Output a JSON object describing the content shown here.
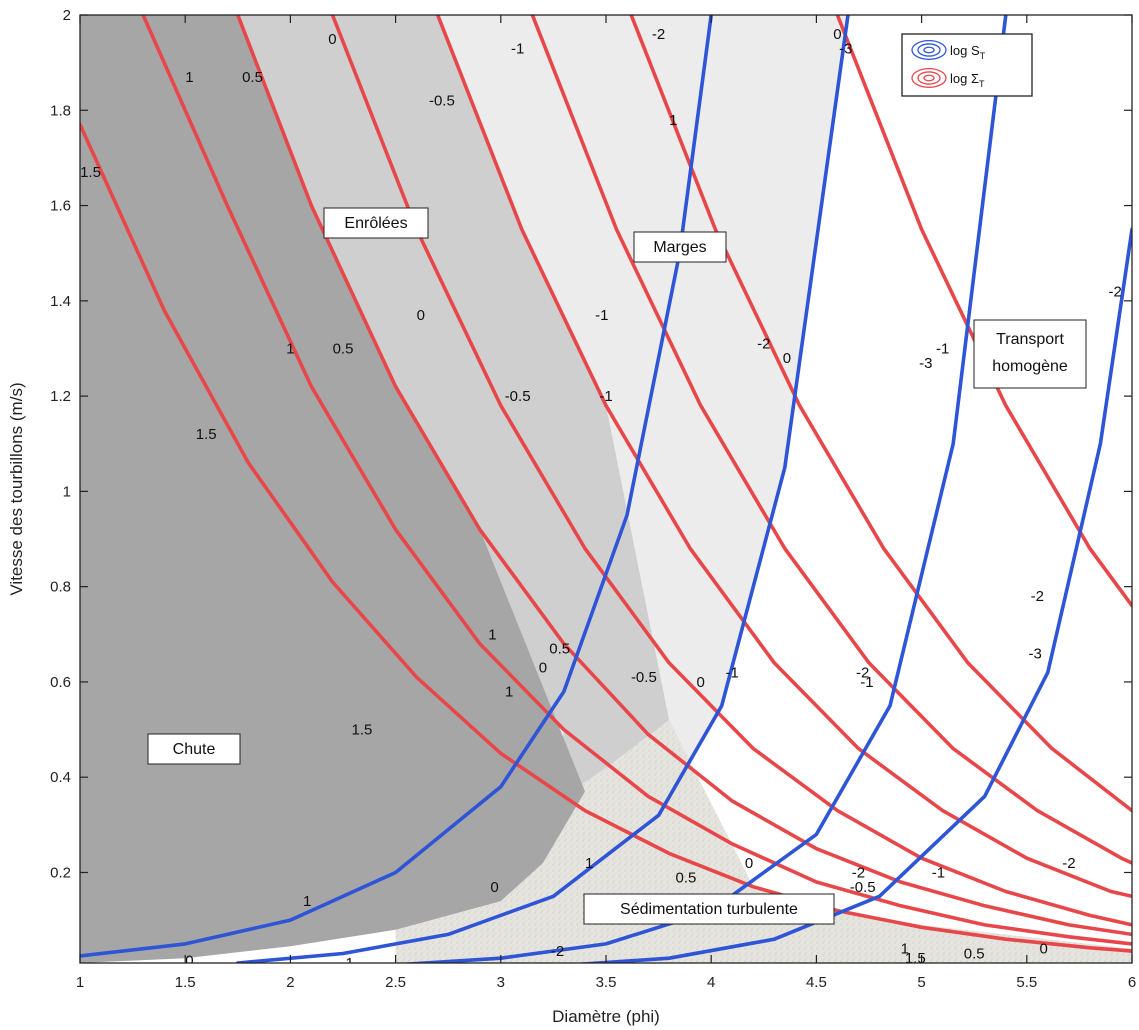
{
  "chart_data": {
    "type": "line",
    "title": "",
    "xlabel": "Diamètre (phi)",
    "ylabel": "Vitesse des tourbillons (m/s)",
    "xlim": [
      1,
      6
    ],
    "ylim": [
      0.01,
      2
    ],
    "x_ticks": [
      "1",
      "1.5",
      "2",
      "2.5",
      "3",
      "3.5",
      "4",
      "4.5",
      "5",
      "5.5",
      "6"
    ],
    "y_ticks": [
      "0.2",
      "0.4",
      "0.6",
      "0.8",
      "1",
      "1.2",
      "1.4",
      "1.6",
      "1.8",
      "2"
    ],
    "grid": false,
    "legend_position": "top-right",
    "legend": [
      {
        "label": "log S",
        "sub": "T",
        "color": "#2e55d6"
      },
      {
        "label": "log Σ",
        "sub": "T",
        "color": "#e8474a"
      }
    ],
    "colors": {
      "blue": "#2e55d6",
      "red": "#e8474a",
      "chute": "#a6a6a6",
      "enrolees": "#cfcfcf",
      "marges": "#ececec",
      "sedimentation": "#e6e4df"
    },
    "regions": [
      {
        "label": "Chute",
        "color": "#a6a6a6"
      },
      {
        "label": "Enrôlées",
        "color": "#cfcfcf"
      },
      {
        "label": "Marges",
        "color": "#ececec"
      },
      {
        "label": "Transport homogène",
        "color": "#ffffff"
      },
      {
        "label": "Sédimentation turbulente",
        "color": "#e6e4df"
      }
    ],
    "series": [
      {
        "color": "#e8474a",
        "x": [
          1.0,
          1.4,
          1.8,
          2.2,
          2.6,
          3.0,
          3.4,
          3.8,
          4.2,
          4.6,
          5.0,
          5.4,
          5.8,
          6.0
        ],
        "y": [
          1.77,
          1.38,
          1.06,
          0.81,
          0.61,
          0.45,
          0.33,
          0.24,
          0.17,
          0.12,
          0.085,
          0.06,
          0.042,
          0.035
        ],
        "labels": [
          {
            "text": "1.5",
            "x": 1.05,
            "y": 1.67
          },
          {
            "text": "1.5",
            "x": 1.6,
            "y": 1.12
          },
          {
            "text": "1.5",
            "x": 2.34,
            "y": 0.5
          },
          {
            "text": "1.5",
            "x": 4.97,
            "y": 0.02
          }
        ]
      },
      {
        "color": "#e8474a",
        "x": [
          1.3,
          1.7,
          2.1,
          2.5,
          2.9,
          3.3,
          3.7,
          4.1,
          4.5,
          4.9,
          5.3,
          5.7,
          6.0
        ],
        "y": [
          2.0,
          1.6,
          1.22,
          0.92,
          0.68,
          0.5,
          0.36,
          0.26,
          0.18,
          0.13,
          0.09,
          0.065,
          0.05
        ],
        "labels": [
          {
            "text": "1",
            "x": 1.52,
            "y": 1.87
          },
          {
            "text": "1",
            "x": 2.0,
            "y": 1.3
          },
          {
            "text": "1",
            "x": 2.96,
            "y": 0.7
          },
          {
            "text": "1",
            "x": 3.42,
            "y": 0.22
          },
          {
            "text": "1",
            "x": 4.92,
            "y": 0.04
          }
        ]
      },
      {
        "color": "#e8474a",
        "x": [
          1.75,
          2.1,
          2.5,
          2.9,
          3.3,
          3.7,
          4.1,
          4.5,
          4.9,
          5.3,
          5.7,
          6.0
        ],
        "y": [
          2.0,
          1.6,
          1.22,
          0.92,
          0.68,
          0.49,
          0.35,
          0.25,
          0.18,
          0.13,
          0.09,
          0.07
        ],
        "labels": [
          {
            "text": "0.5",
            "x": 1.82,
            "y": 1.87
          },
          {
            "text": "0.5",
            "x": 2.25,
            "y": 1.3
          },
          {
            "text": "0.5",
            "x": 3.28,
            "y": 0.67
          },
          {
            "text": "0.5",
            "x": 3.88,
            "y": 0.19
          },
          {
            "text": "0.5",
            "x": 5.25,
            "y": 0.03
          }
        ]
      },
      {
        "color": "#e8474a",
        "x": [
          2.2,
          2.6,
          3.0,
          3.4,
          3.8,
          4.2,
          4.6,
          5.0,
          5.4,
          5.8,
          6.0
        ],
        "y": [
          2.0,
          1.55,
          1.18,
          0.88,
          0.64,
          0.46,
          0.33,
          0.23,
          0.16,
          0.11,
          0.09
        ],
        "labels": [
          {
            "text": "0",
            "x": 2.2,
            "y": 1.95
          },
          {
            "text": "0",
            "x": 2.62,
            "y": 1.37
          },
          {
            "text": "0",
            "x": 3.2,
            "y": 0.63
          },
          {
            "text": "0",
            "x": 4.18,
            "y": 0.22
          },
          {
            "text": "0",
            "x": 5.58,
            "y": 0.04
          }
        ]
      },
      {
        "color": "#e8474a",
        "x": [
          2.7,
          3.1,
          3.5,
          3.9,
          4.3,
          4.7,
          5.1,
          5.5,
          5.9,
          6.0
        ],
        "y": [
          2.0,
          1.55,
          1.18,
          0.88,
          0.64,
          0.46,
          0.33,
          0.23,
          0.16,
          0.15
        ],
        "labels": [
          {
            "text": "-0.5",
            "x": 2.72,
            "y": 1.82
          },
          {
            "text": "-0.5",
            "x": 3.08,
            "y": 1.2
          },
          {
            "text": "-0.5",
            "x": 3.68,
            "y": 0.61
          },
          {
            "text": "-0.5",
            "x": 4.72,
            "y": 0.17
          }
        ]
      },
      {
        "color": "#e8474a",
        "x": [
          3.15,
          3.55,
          3.95,
          4.35,
          4.75,
          5.15,
          5.55,
          5.95,
          6.0
        ],
        "y": [
          2.0,
          1.55,
          1.18,
          0.88,
          0.64,
          0.46,
          0.33,
          0.23,
          0.22
        ],
        "labels": [
          {
            "text": "-1",
            "x": 3.08,
            "y": 1.93
          },
          {
            "text": "-1",
            "x": 3.48,
            "y": 1.37
          },
          {
            "text": "-1",
            "x": 4.1,
            "y": 0.62
          },
          {
            "text": "-1",
            "x": 5.08,
            "y": 0.2
          }
        ]
      },
      {
        "color": "#e8474a",
        "x": [
          3.62,
          4.02,
          4.42,
          4.82,
          5.22,
          5.62,
          6.0
        ],
        "y": [
          2.0,
          1.55,
          1.18,
          0.88,
          0.64,
          0.46,
          0.33
        ],
        "labels": [
          {
            "text": "-2",
            "x": 3.75,
            "y": 1.96
          },
          {
            "text": "-2",
            "x": 4.25,
            "y": 1.31
          },
          {
            "text": "-2",
            "x": 4.72,
            "y": 0.62
          },
          {
            "text": "-2",
            "x": 5.7,
            "y": 0.22
          }
        ]
      },
      {
        "color": "#e8474a",
        "x": [
          4.6,
          5.0,
          5.4,
          5.8,
          6.0
        ],
        "y": [
          2.0,
          1.55,
          1.18,
          0.88,
          0.76
        ],
        "labels": [
          {
            "text": "-3",
            "x": 4.64,
            "y": 1.93
          },
          {
            "text": "-3",
            "x": 5.02,
            "y": 1.27
          },
          {
            "text": "-3",
            "x": 5.54,
            "y": 0.66
          }
        ]
      },
      {
        "color": "#2e55d6",
        "x": [
          1.0,
          1.5,
          2.0,
          2.5,
          3.0,
          3.3,
          3.6,
          3.85,
          4.0
        ],
        "y": [
          0.025,
          0.05,
          0.1,
          0.2,
          0.38,
          0.58,
          0.95,
          1.5,
          2.0
        ],
        "labels": [
          {
            "text": "1",
            "x": 2.08,
            "y": 0.14
          },
          {
            "text": "1",
            "x": 3.04,
            "y": 0.58
          },
          {
            "text": "1",
            "x": 3.82,
            "y": 1.78
          }
        ]
      },
      {
        "color": "#2e55d6",
        "x": [
          1.75,
          2.25,
          2.75,
          3.25,
          3.75,
          4.05,
          4.35,
          4.65
        ],
        "y": [
          0.01,
          0.03,
          0.07,
          0.15,
          0.32,
          0.55,
          1.05,
          2.0
        ],
        "labels": [
          {
            "text": "0",
            "x": 1.52,
            "y": 0.015
          },
          {
            "text": "0",
            "x": 2.97,
            "y": 0.17
          },
          {
            "text": "0",
            "x": 3.95,
            "y": 0.6
          },
          {
            "text": "0",
            "x": 4.36,
            "y": 1.28
          },
          {
            "text": "0",
            "x": 4.6,
            "y": 1.96
          }
        ]
      },
      {
        "color": "#2e55d6",
        "x": [
          2.5,
          3.0,
          3.5,
          4.0,
          4.5,
          4.85,
          5.15,
          5.4
        ],
        "y": [
          0.006,
          0.02,
          0.05,
          0.12,
          0.28,
          0.55,
          1.1,
          2.0
        ],
        "labels": [
          {
            "text": "-1",
            "x": 2.27,
            "y": 0.01
          },
          {
            "text": "-1",
            "x": 3.5,
            "y": 1.2
          },
          {
            "text": "-1",
            "x": 4.74,
            "y": 0.6
          },
          {
            "text": "-1",
            "x": 5.1,
            "y": 1.3
          }
        ]
      },
      {
        "color": "#2e55d6",
        "x": [
          3.3,
          3.8,
          4.3,
          4.8,
          5.3,
          5.6,
          5.85,
          6.0
        ],
        "y": [
          0.005,
          0.02,
          0.06,
          0.15,
          0.36,
          0.62,
          1.1,
          1.55
        ],
        "labels": [
          {
            "text": "-2",
            "x": 3.27,
            "y": 0.035
          },
          {
            "text": "-2",
            "x": 4.7,
            "y": 0.2
          },
          {
            "text": "-2",
            "x": 5.55,
            "y": 0.78
          },
          {
            "text": "-2",
            "x": 5.92,
            "y": 1.42
          }
        ]
      }
    ]
  },
  "region_labels": {
    "chute": "Chute",
    "enrolees": "Enrôlées",
    "marges": "Marges",
    "transport_line1": "Transport",
    "transport_line2": "homogène",
    "sedimentation": "Sédimentation turbulente"
  }
}
